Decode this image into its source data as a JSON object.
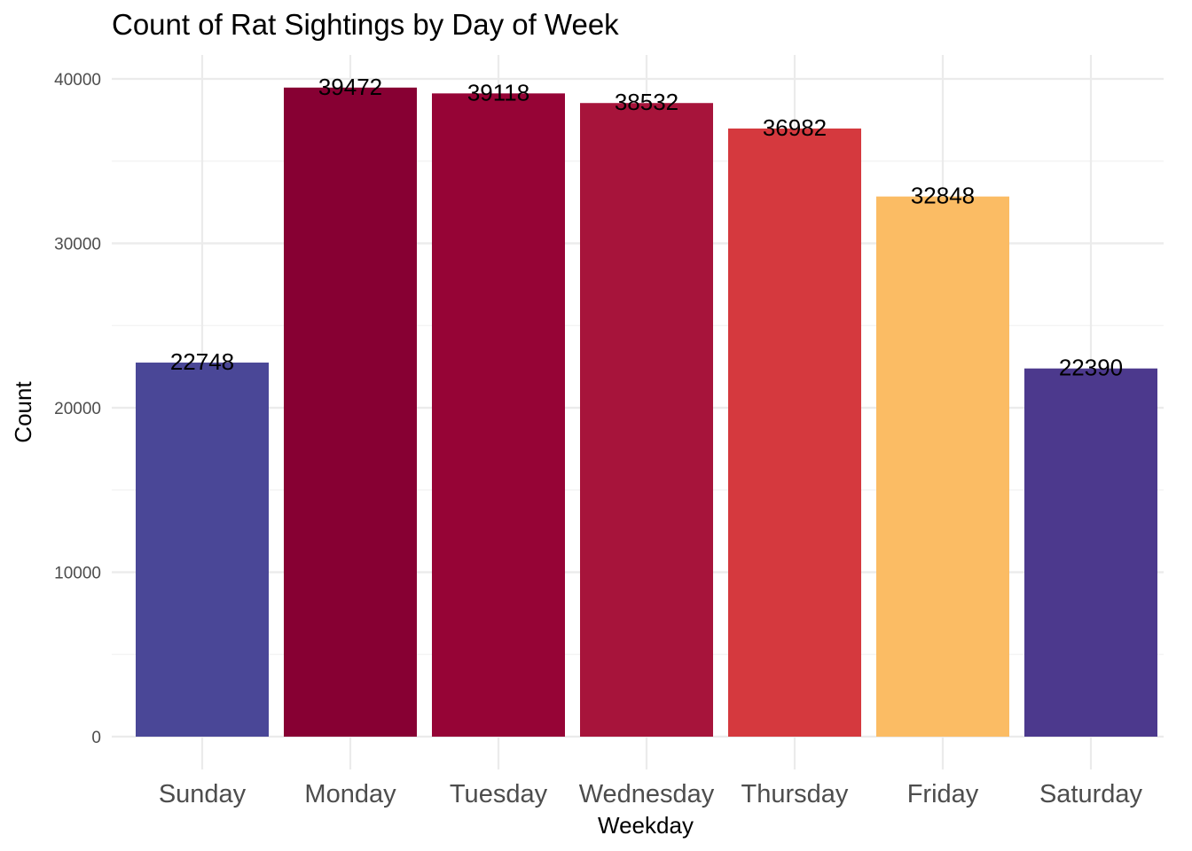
{
  "chart_data": {
    "type": "bar",
    "title": "Count of Rat Sightings by Day of Week",
    "xlabel": "Weekday",
    "ylabel": "Count",
    "categories": [
      "Sunday",
      "Monday",
      "Tuesday",
      "Wednesday",
      "Thursday",
      "Friday",
      "Saturday"
    ],
    "values": [
      22748,
      39472,
      39118,
      38532,
      36982,
      32848,
      22390
    ],
    "data_labels": [
      "22748",
      "39472",
      "39118",
      "38532",
      "36982",
      "32848",
      "22390"
    ],
    "bar_colors": [
      "#4a4797",
      "#870033",
      "#960436",
      "#a7143b",
      "#d5393e",
      "#fbbc64",
      "#4c398d"
    ],
    "ylim": [
      0,
      40000
    ],
    "yticks": [
      0,
      10000,
      20000,
      30000,
      40000
    ],
    "ytick_labels": [
      "0",
      "10000",
      "20000",
      "30000",
      "40000"
    ],
    "grid": true,
    "legend": "none"
  }
}
